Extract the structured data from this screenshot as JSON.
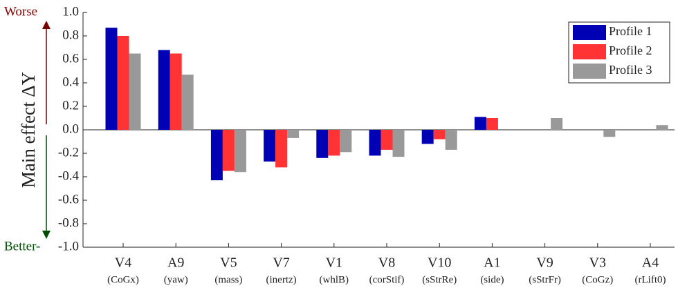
{
  "chart_data": {
    "type": "bar",
    "y_label": "Main effect ΔY",
    "top_note": "Worse",
    "bottom_note": "Better-",
    "categories": [
      "V4",
      "A9",
      "V5",
      "V7",
      "V1",
      "V8",
      "V10",
      "A1",
      "V9",
      "V3",
      "A4"
    ],
    "category_notes": [
      "(CoGx)",
      "(yaw)",
      "(mass)",
      "(inertz)",
      "(whlB)",
      "(corStif)",
      "(sStrRe)",
      "(side)",
      "(sStrFr)",
      "(CoGz)",
      "(rLift0)"
    ],
    "series": [
      {
        "name": "Profile 1",
        "color": "#0000b4",
        "values": [
          0.87,
          0.68,
          -0.43,
          -0.27,
          -0.24,
          -0.22,
          -0.12,
          0.11,
          0,
          0,
          0
        ]
      },
      {
        "name": "Profile 2",
        "color": "#ff3333",
        "values": [
          0.8,
          0.65,
          -0.35,
          -0.32,
          -0.22,
          -0.17,
          -0.08,
          0.1,
          0,
          0,
          0
        ]
      },
      {
        "name": "Profile 3",
        "color": "#999999",
        "values": [
          0.65,
          0.47,
          -0.36,
          -0.07,
          -0.19,
          -0.23,
          -0.17,
          0,
          0.1,
          -0.06,
          0.04
        ]
      }
    ],
    "ylim": [
      -1,
      1
    ],
    "yticks": [
      {
        "value": -1,
        "label": "-1.0"
      },
      {
        "value": -0.8,
        "label": "-0.8"
      },
      {
        "value": -0.6,
        "label": "-0.6"
      },
      {
        "value": -0.4,
        "label": "-0.4"
      },
      {
        "value": -0.2,
        "label": "-0.2"
      },
      {
        "value": 0,
        "label": "0.0"
      },
      {
        "value": 0.2,
        "label": "0.2"
      },
      {
        "value": 0.4,
        "label": "0.4"
      },
      {
        "value": 0.6,
        "label": "0.6"
      },
      {
        "value": 0.8,
        "label": "0.8"
      },
      {
        "value": 1,
        "label": "1.0"
      }
    ],
    "legend": "top-right"
  }
}
